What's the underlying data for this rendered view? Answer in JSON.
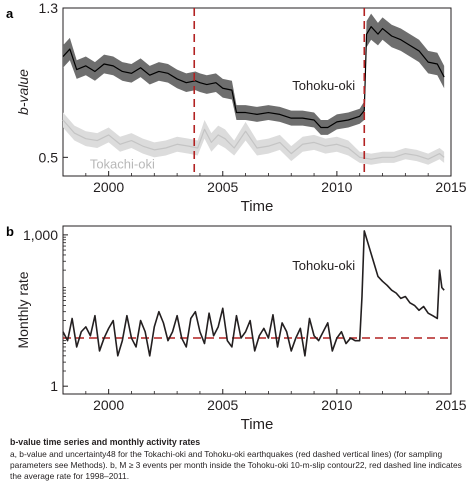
{
  "chart_data": [
    {
      "panel": "a",
      "type": "line",
      "ylabel": "b-value",
      "xlabel": "Time",
      "ylim": [
        0.4,
        1.3
      ],
      "xlim": [
        1998,
        2015
      ],
      "yticks": [
        0.5,
        1.3
      ],
      "xticks": [
        2000,
        2005,
        2010,
        2015
      ],
      "series": [
        {
          "name": "Tohoku-oki",
          "color": "#000000",
          "band_color": "#6e6e6e",
          "x": [
            1998.0,
            1998.3,
            1998.6,
            1999.0,
            1999.4,
            1999.8,
            2000.2,
            2000.6,
            2001.0,
            2001.4,
            2001.8,
            2002.2,
            2002.6,
            2003.0,
            2003.4,
            2003.8,
            2004.0,
            2004.3,
            2004.7,
            2005.0,
            2005.4,
            2005.6,
            2006.0,
            2006.5,
            2007.0,
            2007.5,
            2008.0,
            2008.5,
            2009.0,
            2009.3,
            2009.6,
            2010.0,
            2010.5,
            2011.0,
            2011.2,
            2011.3,
            2011.5,
            2011.8,
            2012.0,
            2012.4,
            2012.8,
            2013.2,
            2013.6,
            2014.0,
            2014.4,
            2014.7
          ],
          "y": [
            1.04,
            1.08,
            0.97,
            0.99,
            0.96,
            1.0,
            0.99,
            0.96,
            0.95,
            0.98,
            0.94,
            0.96,
            0.95,
            0.92,
            0.9,
            0.91,
            0.9,
            0.89,
            0.9,
            0.87,
            0.86,
            0.74,
            0.74,
            0.73,
            0.74,
            0.73,
            0.71,
            0.71,
            0.7,
            0.66,
            0.66,
            0.69,
            0.7,
            0.72,
            0.75,
            1.16,
            1.2,
            1.16,
            1.19,
            1.15,
            1.13,
            1.1,
            1.07,
            1.01,
            1.0,
            0.93
          ],
          "band": [
            0.06,
            0.06,
            0.05,
            0.05,
            0.05,
            0.05,
            0.05,
            0.05,
            0.05,
            0.05,
            0.05,
            0.05,
            0.05,
            0.05,
            0.05,
            0.05,
            0.05,
            0.05,
            0.05,
            0.05,
            0.05,
            0.04,
            0.04,
            0.04,
            0.04,
            0.04,
            0.04,
            0.04,
            0.04,
            0.04,
            0.04,
            0.04,
            0.04,
            0.04,
            0.05,
            0.07,
            0.07,
            0.06,
            0.06,
            0.06,
            0.06,
            0.06,
            0.06,
            0.06,
            0.06,
            0.06
          ]
        },
        {
          "name": "Tokachi-oki",
          "color": "#c4c4c4",
          "band_color": "#dcdcdc",
          "x": [
            1998.0,
            1998.5,
            1999.0,
            1999.5,
            2000.0,
            2000.5,
            2001.0,
            2001.5,
            2002.0,
            2002.5,
            2003.0,
            2003.5,
            2003.9,
            2004.2,
            2004.5,
            2004.8,
            2005.1,
            2005.5,
            2006.0,
            2006.5,
            2007.0,
            2007.5,
            2008.0,
            2008.5,
            2009.0,
            2009.5,
            2010.0,
            2010.5,
            2011.0,
            2011.5,
            2012.0,
            2012.5,
            2013.0,
            2013.5,
            2014.0,
            2014.5,
            2014.7
          ],
          "y": [
            0.7,
            0.63,
            0.6,
            0.59,
            0.62,
            0.57,
            0.59,
            0.56,
            0.54,
            0.55,
            0.57,
            0.56,
            0.55,
            0.65,
            0.58,
            0.62,
            0.6,
            0.55,
            0.64,
            0.55,
            0.56,
            0.58,
            0.52,
            0.57,
            0.58,
            0.56,
            0.57,
            0.55,
            0.5,
            0.49,
            0.5,
            0.5,
            0.52,
            0.51,
            0.49,
            0.52,
            0.5
          ],
          "band": [
            0.04,
            0.04,
            0.04,
            0.04,
            0.04,
            0.04,
            0.04,
            0.04,
            0.04,
            0.04,
            0.04,
            0.04,
            0.04,
            0.05,
            0.05,
            0.05,
            0.05,
            0.04,
            0.05,
            0.04,
            0.04,
            0.04,
            0.04,
            0.04,
            0.04,
            0.04,
            0.04,
            0.04,
            0.03,
            0.03,
            0.03,
            0.03,
            0.03,
            0.03,
            0.03,
            0.03,
            0.03
          ]
        }
      ],
      "vlines": [
        {
          "x": 2003.75,
          "color": "#b22222",
          "style": "dashed"
        },
        {
          "x": 2011.2,
          "color": "#b22222",
          "style": "dashed"
        }
      ],
      "annotations": [
        {
          "text": "Tohoku-oki",
          "x": 2010.8,
          "y": 0.86
        },
        {
          "text": "Tokachi-oki",
          "x": 2000.6,
          "y": 0.44
        }
      ]
    },
    {
      "panel": "b",
      "type": "line",
      "ylabel": "Monthly rate",
      "xlabel": "Time",
      "yscale": "log",
      "ylim": [
        0.7,
        1500
      ],
      "xlim": [
        1998,
        2015
      ],
      "yticks": [
        {
          "value": 1,
          "label": "1"
        },
        {
          "value": 1000,
          "label": "1,000"
        }
      ],
      "xticks": [
        2000,
        2005,
        2010,
        2015
      ],
      "series": [
        {
          "name": "Tohoku-oki",
          "color": "#231f20",
          "x": [
            1998.0,
            1998.2,
            1998.4,
            1998.6,
            1998.8,
            1999.0,
            1999.2,
            1999.4,
            1999.6,
            1999.8,
            2000.0,
            2000.2,
            2000.4,
            2000.6,
            2000.8,
            2001.0,
            2001.2,
            2001.4,
            2001.6,
            2001.8,
            2002.0,
            2002.2,
            2002.4,
            2002.6,
            2002.8,
            2003.0,
            2003.2,
            2003.4,
            2003.6,
            2003.8,
            2004.0,
            2004.2,
            2004.4,
            2004.6,
            2004.8,
            2005.0,
            2005.2,
            2005.4,
            2005.6,
            2005.8,
            2006.0,
            2006.2,
            2006.4,
            2006.6,
            2006.8,
            2007.0,
            2007.2,
            2007.4,
            2007.6,
            2007.8,
            2008.0,
            2008.2,
            2008.4,
            2008.6,
            2008.8,
            2009.0,
            2009.2,
            2009.4,
            2009.6,
            2009.8,
            2010.0,
            2010.2,
            2010.4,
            2010.6,
            2010.8,
            2011.0,
            2011.1,
            2011.2,
            2011.4,
            2011.6,
            2011.8,
            2012.0,
            2012.2,
            2012.4,
            2012.6,
            2012.8,
            2013.0,
            2013.2,
            2013.4,
            2013.6,
            2013.8,
            2014.0,
            2014.2,
            2014.4,
            2014.5,
            2014.6,
            2014.7
          ],
          "y": [
            12,
            8,
            22,
            6,
            12,
            15,
            10,
            25,
            5,
            9,
            14,
            20,
            4,
            8,
            25,
            9,
            6,
            20,
            12,
            4,
            15,
            30,
            18,
            8,
            12,
            25,
            9,
            6,
            22,
            30,
            12,
            7,
            28,
            10,
            15,
            35,
            8,
            6,
            25,
            9,
            12,
            20,
            5,
            10,
            14,
            9,
            26,
            6,
            18,
            12,
            5,
            9,
            14,
            4,
            22,
            10,
            8,
            12,
            18,
            5,
            9,
            12,
            7,
            9,
            8,
            8,
            60,
            1200,
            600,
            300,
            150,
            120,
            100,
            80,
            70,
            55,
            60,
            45,
            40,
            32,
            38,
            28,
            25,
            22,
            200,
            90,
            80
          ]
        }
      ],
      "hlines": [
        {
          "y": 9,
          "color": "#b22222",
          "style": "dashed"
        }
      ],
      "annotations": [
        {
          "text": "Tohoku-oki",
          "x": 2010.8,
          "y": 200
        }
      ]
    }
  ],
  "panel_labels": {
    "a": "a",
    "b": "b"
  },
  "caption": {
    "title": "b-value time series and monthly activity rates",
    "text": "a, b-value and uncertainty48 for the Tokachi-oki and Tohoku-oki earthquakes (red dashed vertical lines) (for sampling parameters see Methods). b, M ≥ 3 events per month inside the Tohoku-oki 10-m-slip contour22, red dashed line indicates the average rate for 1998–2011."
  }
}
